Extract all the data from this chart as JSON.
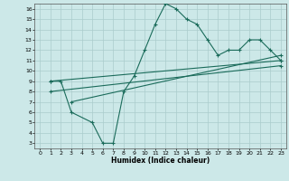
{
  "xlabel": "Humidex (Indice chaleur)",
  "bg_color": "#cce8e8",
  "grid_color": "#aacccc",
  "line_color": "#1a6b5a",
  "xlim": [
    -0.5,
    23.5
  ],
  "ylim": [
    2.5,
    16.5
  ],
  "xticks": [
    0,
    1,
    2,
    3,
    4,
    5,
    6,
    7,
    8,
    9,
    10,
    11,
    12,
    13,
    14,
    15,
    16,
    17,
    18,
    19,
    20,
    21,
    22,
    23
  ],
  "yticks": [
    3,
    4,
    5,
    6,
    7,
    8,
    9,
    10,
    11,
    12,
    13,
    14,
    15,
    16
  ],
  "curve_x": [
    1,
    2,
    3,
    5,
    6,
    7,
    8,
    9,
    10,
    11,
    12,
    13,
    14,
    15,
    16,
    17,
    18,
    19,
    20,
    21,
    22,
    23
  ],
  "curve_y": [
    9,
    9,
    6,
    5,
    3,
    3,
    8,
    9.5,
    12,
    14.5,
    16.5,
    16,
    15,
    14.5,
    13,
    11.5,
    12,
    12,
    13,
    13,
    12,
    11
  ],
  "line1_x": [
    1,
    23
  ],
  "line1_y": [
    9,
    11
  ],
  "line2_x": [
    1,
    23
  ],
  "line2_y": [
    8,
    10.5
  ],
  "line3_x": [
    3,
    23
  ],
  "line3_y": [
    7,
    11.5
  ]
}
